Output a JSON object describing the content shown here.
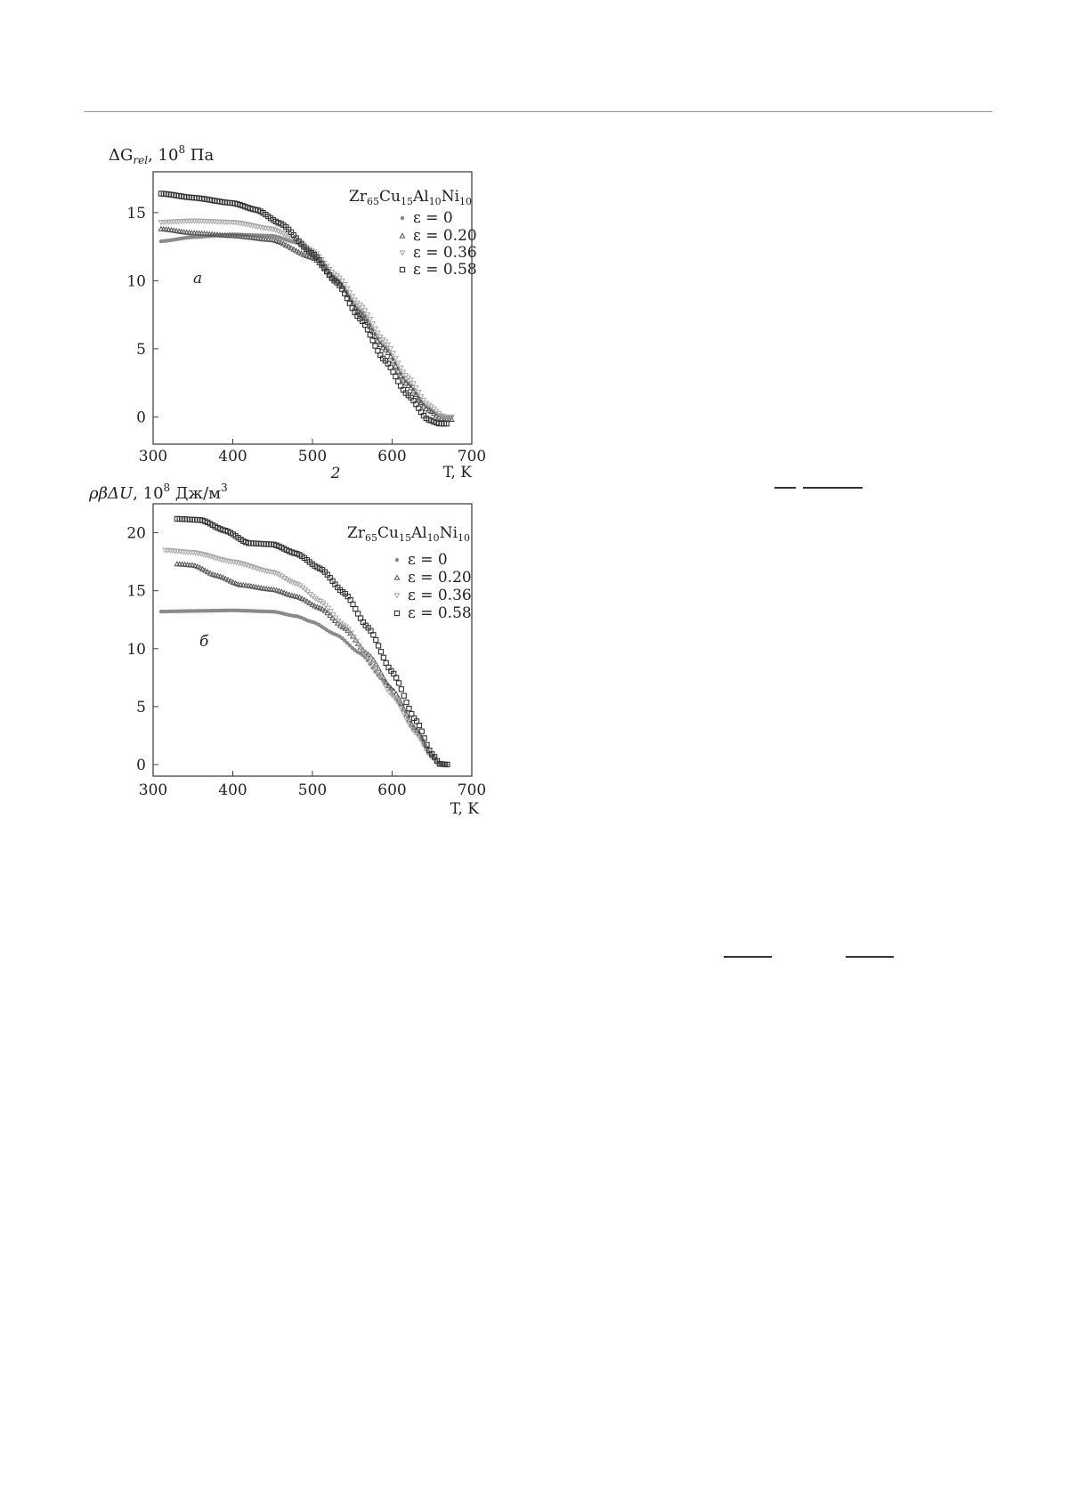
{
  "figure_label": "2",
  "chart_data": [
    {
      "type": "scatter",
      "panel_label": "a",
      "ylabel": "ΔG_rel, 10^8 Па",
      "ylabel_parts": {
        "main": "ΔG",
        "sub": "rel",
        "rest": ", 10",
        "sup": "8",
        "unit": " Па"
      },
      "xlabel": "T, K",
      "xlim": [
        300,
        700
      ],
      "ylim": [
        -2,
        18
      ],
      "xticks": [
        300,
        400,
        500,
        600,
        700
      ],
      "yticks": [
        0,
        5,
        10,
        15
      ],
      "legend_title": "Zr65Cu15Al10Ni10",
      "legend_position": "top-right",
      "grid": false,
      "series": [
        {
          "name": "ε = 0",
          "marker": "circle-filled",
          "color": "#8a8a8a",
          "x": [
            310,
            350,
            400,
            450,
            480,
            500,
            530,
            560,
            590,
            620,
            640,
            660,
            675
          ],
          "y": [
            12.9,
            13.2,
            13.4,
            13.3,
            12.8,
            12.0,
            10.2,
            7.8,
            5.2,
            2.5,
            0.9,
            0.1,
            0.0
          ]
        },
        {
          "name": "ε = 0.20",
          "marker": "triangle-up",
          "color": "#555555",
          "x": [
            310,
            350,
            400,
            450,
            500,
            530,
            560,
            590,
            620,
            645,
            665,
            675
          ],
          "y": [
            13.8,
            13.5,
            13.3,
            13.0,
            11.7,
            10.0,
            7.6,
            5.0,
            2.3,
            0.5,
            -0.2,
            -0.2
          ]
        },
        {
          "name": "ε = 0.36",
          "marker": "triangle-down",
          "color": "#a8a8a8",
          "x": [
            310,
            350,
            400,
            450,
            480,
            500,
            530,
            560,
            590,
            620,
            645,
            665,
            675
          ],
          "y": [
            14.3,
            14.4,
            14.3,
            13.8,
            13.0,
            12.2,
            10.4,
            8.2,
            5.6,
            2.9,
            0.9,
            0.0,
            0.0
          ]
        },
        {
          "name": "ε = 0.58",
          "marker": "square",
          "color": "#333333",
          "x": [
            310,
            350,
            400,
            430,
            460,
            500,
            530,
            560,
            590,
            620,
            645,
            660,
            670
          ],
          "y": [
            16.4,
            16.1,
            15.7,
            15.2,
            14.2,
            12.0,
            9.9,
            7.2,
            4.2,
            1.6,
            -0.2,
            -0.5,
            -0.5
          ]
        }
      ]
    },
    {
      "type": "scatter",
      "panel_label": "б",
      "ylabel": "ρβΔU, 10^8 Дж/м^3",
      "ylabel_parts": {
        "main": "ρβΔU",
        "rest": ", 10",
        "sup": "8",
        "unit": " Дж/м",
        "sup2": "3"
      },
      "xlabel": "T, K",
      "xlim": [
        300,
        700
      ],
      "ylim": [
        -1,
        22.5
      ],
      "xticks": [
        300,
        400,
        500,
        600,
        700
      ],
      "yticks": [
        0,
        5,
        10,
        15,
        20
      ],
      "legend_title": "Zr65Cu15Al10Ni10",
      "legend_position": "top-right",
      "grid": false,
      "series": [
        {
          "name": "ε = 0",
          "marker": "circle-filled",
          "color": "#8a8a8a",
          "x": [
            310,
            350,
            400,
            450,
            480,
            500,
            530,
            560,
            590,
            610,
            630,
            650,
            660,
            670
          ],
          "y": [
            13.2,
            13.25,
            13.3,
            13.2,
            12.8,
            12.3,
            11.2,
            9.6,
            7.2,
            5.2,
            3.0,
            0.8,
            0.05,
            0.0
          ]
        },
        {
          "name": "ε = 0.20",
          "marker": "triangle-up",
          "color": "#555555",
          "x": [
            330,
            350,
            380,
            410,
            450,
            480,
            510,
            540,
            570,
            600,
            630,
            650,
            660
          ],
          "y": [
            17.3,
            17.2,
            16.3,
            15.5,
            15.1,
            14.5,
            13.5,
            11.8,
            9.5,
            6.5,
            3.0,
            0.8,
            0.0
          ]
        },
        {
          "name": "ε = 0.36",
          "marker": "triangle-down",
          "color": "#a8a8a8",
          "x": [
            315,
            350,
            400,
            450,
            480,
            510,
            540,
            570,
            600,
            630,
            650,
            660
          ],
          "y": [
            18.5,
            18.3,
            17.5,
            16.6,
            15.6,
            14.1,
            12.0,
            9.3,
            6.0,
            2.7,
            0.6,
            0.0
          ]
        },
        {
          "name": "ε = 0.58",
          "marker": "square",
          "color": "#333333",
          "x": [
            330,
            360,
            390,
            420,
            450,
            480,
            510,
            540,
            570,
            600,
            630,
            650,
            660,
            670
          ],
          "y": [
            21.2,
            21.1,
            20.2,
            19.1,
            19.0,
            18.2,
            16.9,
            14.8,
            11.8,
            8.0,
            3.8,
            0.9,
            0.05,
            0.0
          ]
        }
      ]
    }
  ]
}
